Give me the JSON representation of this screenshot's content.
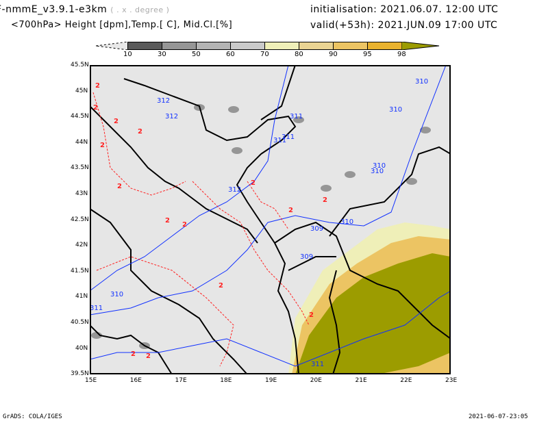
{
  "header": {
    "model": "F-nmmE_v3.9.1-e3km",
    "units_note": "( . x . degree )",
    "subtitle": "<700hPa> Height [dpm],Temp.[ C], Mid.Cl.[%]",
    "init": "initialisation: 2021.06.07.  12:00 UTC",
    "valid": "valid(+53h): 2021.JUN.09  17:00 UTC"
  },
  "colorbar": {
    "labels": [
      "10",
      "30",
      "50",
      "60",
      "70",
      "80",
      "90",
      "95",
      "98"
    ],
    "colors": [
      "#e8e8e8",
      "#5a5a5a",
      "#969696",
      "#b4b4b4",
      "#cacaca",
      "#efefb8",
      "#ead493",
      "#ecc463",
      "#e9b22e",
      "#9c9c00"
    ]
  },
  "axes": {
    "lat": [
      "45.5N",
      "45N",
      "44.5N",
      "44N",
      "43.5N",
      "43N",
      "42.5N",
      "42N",
      "41.5N",
      "41N",
      "40.5N",
      "40N",
      "39.5N"
    ],
    "lon": [
      "15E",
      "16E",
      "17E",
      "18E",
      "19E",
      "20E",
      "21E",
      "22E",
      "23E"
    ]
  },
  "contour_labels": {
    "height": [
      "312",
      "312",
      "312",
      "311",
      "311",
      "311",
      "310",
      "310",
      "310",
      "310",
      "310",
      "309",
      "309",
      "311",
      "311",
      "310"
    ],
    "temp": [
      "2",
      "2",
      "2",
      "2",
      "2",
      "2",
      "2",
      "2",
      "2",
      "2",
      "2",
      "2",
      "2",
      "2",
      "2"
    ]
  },
  "colors": {
    "background": "#e6e6e6",
    "height_contour": "#1030ff",
    "temp_contour": "#ff2020",
    "coast": "#000000"
  },
  "footer": {
    "left": "GrADS: COLA/IGES",
    "right": "2021-06-07-23:05"
  }
}
